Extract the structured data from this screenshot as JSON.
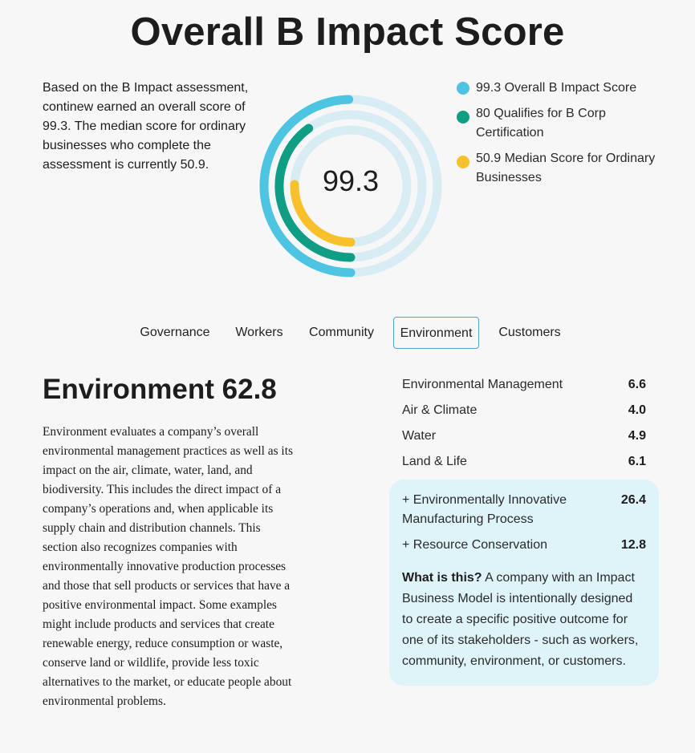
{
  "page": {
    "title": "Overall B Impact Score",
    "intro": "Based on the B Impact assessment, continew earned an overall score of 99.3. The median score for ordinary businesses who complete the assessment is currently 50.9."
  },
  "gauge": {
    "center_value": "99.3",
    "rings": [
      {
        "name": "Overall B Impact Score",
        "value": 99.3,
        "max": 200,
        "color": "#4cc4e2",
        "track": "#d8edf3"
      },
      {
        "name": "Qualifies for B Corp Certification",
        "value": 80,
        "max": 200,
        "color": "#0f9e84",
        "track": "#d8edf3"
      },
      {
        "name": "Median Score for Ordinary Businesses",
        "value": 50.9,
        "max": 200,
        "color": "#f8c12b",
        "track": "#d8edf3"
      }
    ]
  },
  "legend": [
    {
      "text": "99.3 Overall B Impact Score",
      "color": "#4cc4e2"
    },
    {
      "text": "80 Qualifies for B Corp Certification",
      "color": "#0f9e84"
    },
    {
      "text": "50.9 Median Score for Ordinary Businesses",
      "color": "#f8c12b"
    }
  ],
  "tabs": [
    {
      "label": "Governance",
      "active": false
    },
    {
      "label": "Workers",
      "active": false
    },
    {
      "label": "Community",
      "active": false
    },
    {
      "label": "Environment",
      "active": true
    },
    {
      "label": "Customers",
      "active": false
    }
  ],
  "section": {
    "title": "Environment 62.8",
    "description": "Environment evaluates a company’s overall environmental management practices as well as its impact on the air, climate, water, land, and biodiversity. This includes the direct impact of a company’s operations and, when applicable its supply chain and distribution channels. This section also recognizes companies with environmentally innovative production processes and those that sell products or services that have a positive environmental impact. Some examples might include products and services that create renewable energy, reduce consumption or waste, conserve land or wildlife, provide less toxic alternatives to the market, or educate people about environmental problems."
  },
  "scores": [
    {
      "label": "Environmental Management",
      "value": "6.6"
    },
    {
      "label": "Air & Climate",
      "value": "4.0"
    },
    {
      "label": "Water",
      "value": "4.9"
    },
    {
      "label": "Land & Life",
      "value": "6.1"
    }
  ],
  "impact_business_models": [
    {
      "label": "+ Environmentally Innovative Manufacturing Process",
      "value": "26.4"
    },
    {
      "label": "+ Resource Conservation",
      "value": "12.8"
    }
  ],
  "what_is_this": {
    "heading": "What is this?",
    "text": " A company with an Impact Business Model is intentionally designed to create a specific positive outcome for one of its stakeholders - such as workers, community, environment, or customers."
  },
  "colors": {
    "accent": "#4aa9c9",
    "panel_bg": "#dff4f9"
  }
}
